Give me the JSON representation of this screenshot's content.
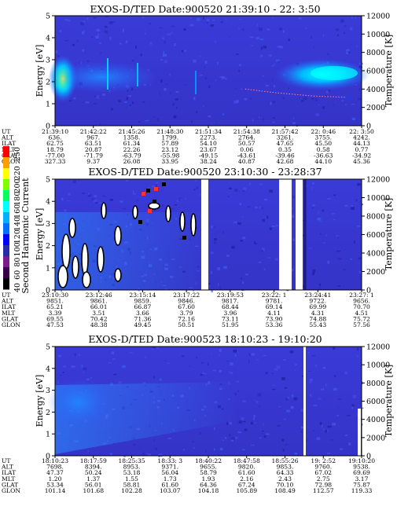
{
  "colorbar": {
    "label": "Second Harmonic Current",
    "ticks": [
      40,
      60,
      80,
      100,
      120,
      140,
      160,
      180,
      200,
      220,
      250
    ],
    "colors": [
      "#000000",
      "#3a004a",
      "#7a1a8c",
      "#2a2aa8",
      "#0000ff",
      "#0070ff",
      "#00b0ff",
      "#00ffff",
      "#00ff60",
      "#80ff00",
      "#ffff00",
      "#ffa000",
      "#ff0000"
    ]
  },
  "row_labels": [
    "UT",
    "ALT",
    "ILAT",
    "MLT",
    "GLAT",
    "GLON"
  ],
  "chart_data": [
    {
      "type": "heatmap",
      "title": "EXOS-D/TED   Date:900520  21:39:10 - 22: 3:50",
      "ylabel": "Energy [eV]",
      "ylabel_right": "Temperature [K]",
      "ylim": [
        0,
        5
      ],
      "yticks": [
        0,
        1,
        2,
        3,
        4,
        5
      ],
      "yticks_right": [
        0,
        2000,
        4000,
        6000,
        8000,
        10000,
        12000
      ],
      "xticks": [
        {
          "UT": "21:39:10",
          "ALT": "636.",
          "ILAT": "62.75",
          "MLT": "18.79",
          "GLAT": "-77.00",
          "GLON": "327.33"
        },
        {
          "UT": "21:42:22",
          "ALT": "967.",
          "ILAT": "63.51",
          "MLT": "20.87",
          "GLAT": "-71.79",
          "GLON": "9.37"
        },
        {
          "UT": "21:45:26",
          "ALT": "1358.",
          "ILAT": "61.34",
          "MLT": "22.26",
          "GLAT": "-63.79",
          "GLON": "26.08"
        },
        {
          "UT": "21:48:30",
          "ALT": "1799.",
          "ILAT": "57.89",
          "MLT": "23.12",
          "GLAT": "-55.98",
          "GLON": "33.95"
        },
        {
          "UT": "21:51:34",
          "ALT": "2273.",
          "ILAT": "54.10",
          "MLT": "23.67",
          "GLAT": "-49.15",
          "GLON": "38.24"
        },
        {
          "UT": "21:54:38",
          "ALT": "2764.",
          "ILAT": "50.57",
          "MLT": "0.06",
          "GLAT": "-43.61",
          "GLON": "40.87"
        },
        {
          "UT": "21:57:42",
          "ALT": "3261.",
          "ILAT": "47.65",
          "MLT": "0.35",
          "GLAT": "-39.46",
          "GLON": "42.68"
        },
        {
          "UT": "22: 0:46",
          "ALT": "3755.",
          "ILAT": "45.50",
          "MLT": "0.58",
          "GLAT": "-36.63",
          "GLON": "44.10"
        },
        {
          "UT": "22: 3:50",
          "ALT": "4242.",
          "ILAT": "44.13",
          "MLT": "0.77",
          "GLAT": "-34.92",
          "GLON": "45.36"
        }
      ],
      "temperature_trace": [
        [
          0.62,
          4000
        ],
        [
          0.72,
          3600
        ],
        [
          0.84,
          3250
        ],
        [
          0.95,
          3100
        ]
      ]
    },
    {
      "type": "heatmap",
      "title": "EXOS-D/TED   Date:900520  23:10:30 - 23:28:37",
      "ylabel": "Energy [eV]",
      "ylabel_right": "Temperature [K]",
      "ylim": [
        0,
        5
      ],
      "yticks": [
        0,
        1,
        2,
        3,
        4,
        5
      ],
      "yticks_right": [
        0,
        2000,
        4000,
        6000,
        8000,
        10000,
        12000
      ],
      "xticks": [
        {
          "UT": "23:10:30",
          "ALT": "9851.",
          "ILAT": "65.21",
          "MLT": "3.39",
          "GLAT": "69.55",
          "GLON": "47.53"
        },
        {
          "UT": "23:12:46",
          "ALT": "9861.",
          "ILAT": "66.01",
          "MLT": "3.51",
          "GLAT": "70.42",
          "GLON": "48.38"
        },
        {
          "UT": "23:15:14",
          "ALT": "9859.",
          "ILAT": "66.87",
          "MLT": "3.66",
          "GLAT": "71.36",
          "GLON": "49.45"
        },
        {
          "UT": "23:17:22",
          "ALT": "9846.",
          "ILAT": "67.60",
          "MLT": "3.79",
          "GLAT": "72.16",
          "GLON": "50.51"
        },
        {
          "UT": "23:19:53",
          "ALT": "9817.",
          "ILAT": "68.44",
          "MLT": "3.96",
          "GLAT": "73.11",
          "GLON": "51.95"
        },
        {
          "UT": "23:22: 1",
          "ALT": "9781.",
          "ILAT": "69.14",
          "MLT": "4.11",
          "GLAT": "73.90",
          "GLON": "53.36"
        },
        {
          "UT": "23:24:41",
          "ALT": "9722.",
          "ILAT": "69.99",
          "MLT": "4.31",
          "GLAT": "74.88",
          "GLON": "55.43"
        },
        {
          "UT": "23:27: 1",
          "ALT": "9656.",
          "ILAT": "70.70",
          "MLT": "4.51",
          "GLAT": "75.72",
          "GLON": "57.56"
        }
      ],
      "temperature_trace": []
    },
    {
      "type": "heatmap",
      "title": "EXOS-D/TED   Date:900523  18:10:23 - 19:10:20",
      "ylabel": "Energy [eV]",
      "ylabel_right": "Temperature [K]",
      "ylim": [
        0,
        5
      ],
      "yticks": [
        0,
        1,
        2,
        3,
        4,
        5
      ],
      "yticks_right": [
        0,
        2000,
        4000,
        6000,
        8000,
        10000,
        12000
      ],
      "xticks": [
        {
          "UT": "18:10:23",
          "ALT": "7698.",
          "ILAT": "47.37",
          "MLT": "1.20",
          "GLAT": "53.34",
          "GLON": "101.14"
        },
        {
          "UT": "18:17:59",
          "ALT": "8394.",
          "ILAT": "50.24",
          "MLT": "1.37",
          "GLAT": "56.01",
          "GLON": "101.68"
        },
        {
          "UT": "18:25:35",
          "ALT": "8953.",
          "ILAT": "53.18",
          "MLT": "1.55",
          "GLAT": "58.81",
          "GLON": "102.28"
        },
        {
          "UT": "18:33: 3",
          "ALT": "9371.",
          "ILAT": "56.04",
          "MLT": "1.73",
          "GLAT": "61.60",
          "GLON": "103.07"
        },
        {
          "UT": "18:40:22",
          "ALT": "9655.",
          "ILAT": "58.79",
          "MLT": "1.93",
          "GLAT": "64.36",
          "GLON": "104.18"
        },
        {
          "UT": "18:47:58",
          "ALT": "9820.",
          "ILAT": "61.60",
          "MLT": "2.16",
          "GLAT": "67.24",
          "GLON": "105.89"
        },
        {
          "UT": "18:55:26",
          "ALT": "9853.",
          "ILAT": "64.33",
          "MLT": "2.43",
          "GLAT": "70.10",
          "GLON": "108.49"
        },
        {
          "UT": "19: 2:52",
          "ALT": "9760.",
          "ILAT": "67.02",
          "MLT": "2.75",
          "GLAT": "72.98",
          "GLON": "112.57"
        },
        {
          "UT": "19:10:20",
          "ALT": "9538.",
          "ILAT": "69.69",
          "MLT": "3.17",
          "GLAT": "75.87",
          "GLON": "119.33"
        }
      ],
      "temperature_trace": []
    }
  ]
}
